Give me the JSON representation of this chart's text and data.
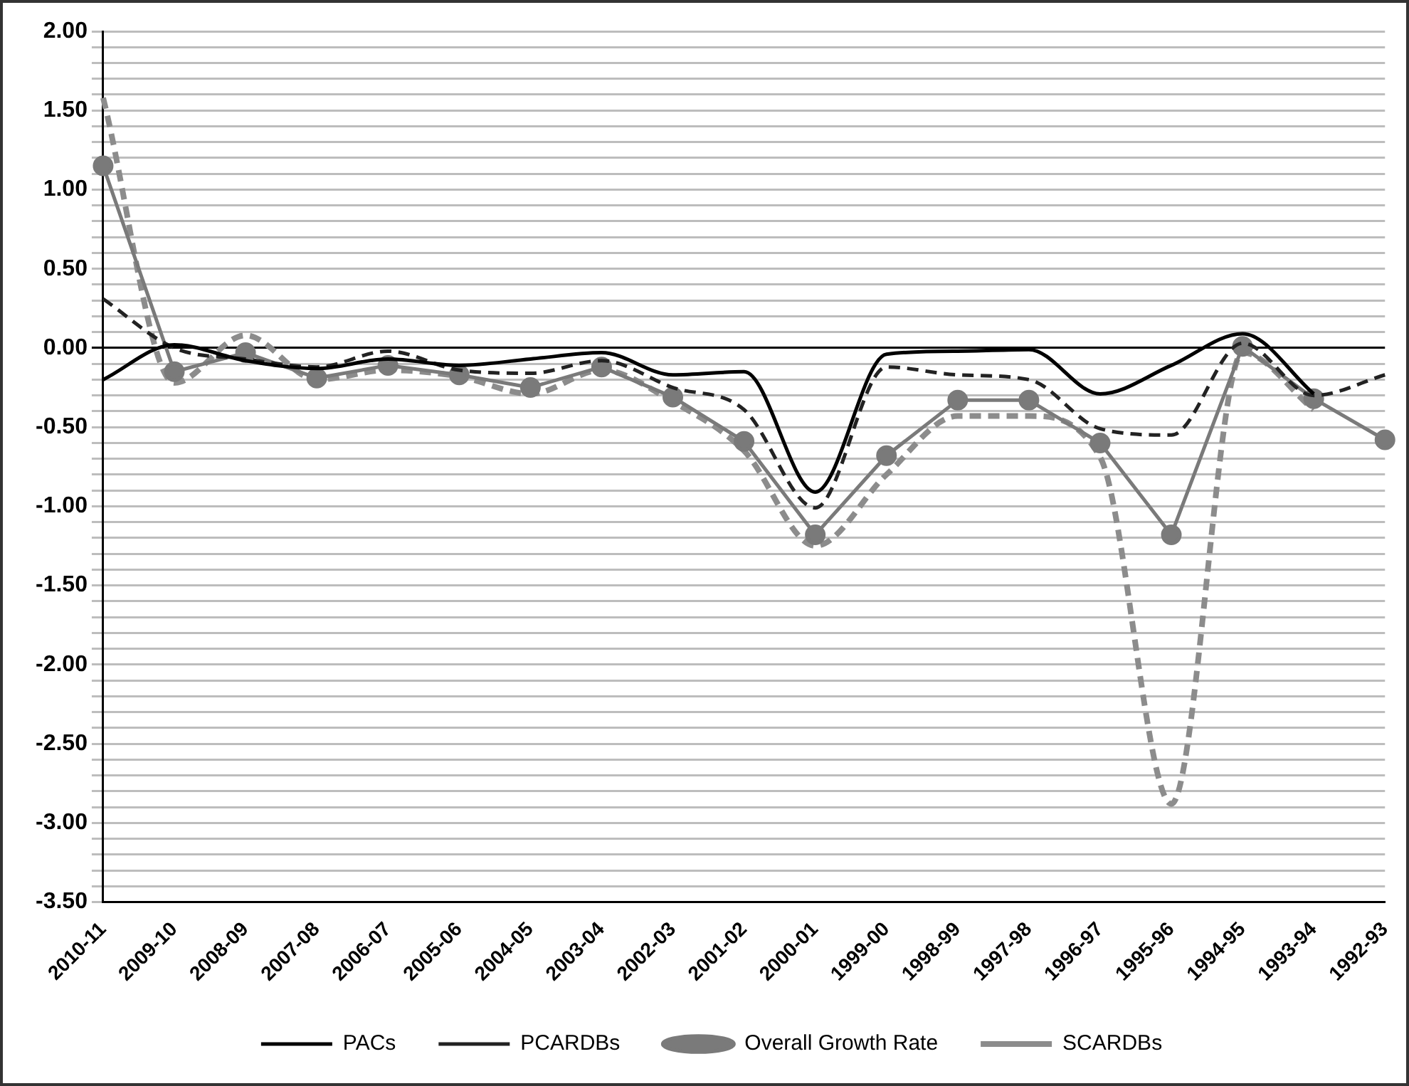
{
  "chart_data": {
    "type": "line",
    "categories": [
      "2010-11",
      "2009-10",
      "2008-09",
      "2007-08",
      "2006-07",
      "2005-06",
      "2004-05",
      "2003-04",
      "2002-03",
      "2001-02",
      "2000-01",
      "1999-00",
      "1998-99",
      "1997-98",
      "1996-97",
      "1995-96",
      "1994-95",
      "1993-94",
      "1992-93"
    ],
    "series": [
      {
        "name": "PACs",
        "color": "#000000",
        "line_style": "solid",
        "marker": "none",
        "values": [
          -0.2,
          0.02,
          -0.08,
          -0.13,
          -0.07,
          -0.11,
          -0.07,
          -0.03,
          -0.17,
          -0.15,
          -0.91,
          -0.04,
          -0.02,
          -0.01,
          -0.29,
          -0.11,
          0.09,
          -0.29,
          null
        ]
      },
      {
        "name": "PCARDBs",
        "color": "#222222",
        "line_style": "dashed",
        "marker": "none",
        "values": [
          0.31,
          0.0,
          -0.07,
          -0.12,
          -0.02,
          -0.14,
          -0.16,
          -0.08,
          -0.25,
          -0.39,
          -1.01,
          -0.12,
          -0.17,
          -0.2,
          -0.51,
          -0.55,
          0.03,
          -0.3,
          -0.17
        ]
      },
      {
        "name": "Overall Growth Rate",
        "color": "#7a7a7a",
        "line_style": "solid",
        "marker": "circle",
        "values": [
          1.15,
          -0.15,
          -0.03,
          -0.19,
          -0.11,
          -0.17,
          -0.25,
          -0.12,
          -0.31,
          -0.59,
          -1.18,
          -0.68,
          -0.33,
          -0.33,
          -0.6,
          -1.18,
          0.01,
          -0.32,
          -0.58
        ]
      },
      {
        "name": "SCARDBs",
        "color": "#8c8c8c",
        "line_style": "dashed",
        "marker": "none",
        "values": [
          1.58,
          -0.22,
          0.08,
          -0.2,
          -0.14,
          -0.18,
          -0.29,
          -0.14,
          -0.34,
          -0.65,
          -1.25,
          -0.8,
          -0.43,
          -0.43,
          -0.69,
          -2.88,
          -0.03,
          -0.39,
          null
        ]
      }
    ],
    "ylim": [
      -3.5,
      2
    ],
    "yticks": [
      {
        "value": -3.5,
        "label": "-3.50"
      },
      {
        "value": -3.4,
        "label": null
      },
      {
        "value": -3.3,
        "label": null
      },
      {
        "value": -3.2,
        "label": null
      },
      {
        "value": -3.1,
        "label": null
      },
      {
        "value": -3.0,
        "label": "-3.00"
      },
      {
        "value": -2.9,
        "label": null
      },
      {
        "value": -2.8,
        "label": null
      },
      {
        "value": -2.7,
        "label": null
      },
      {
        "value": -2.6,
        "label": null
      },
      {
        "value": -2.5,
        "label": "-2.50"
      },
      {
        "value": -2.4,
        "label": null
      },
      {
        "value": -2.3,
        "label": null
      },
      {
        "value": -2.2,
        "label": null
      },
      {
        "value": -2.1,
        "label": null
      },
      {
        "value": -2.0,
        "label": "-2.00"
      },
      {
        "value": -1.9,
        "label": null
      },
      {
        "value": -1.8,
        "label": null
      },
      {
        "value": -1.7,
        "label": null
      },
      {
        "value": -1.6,
        "label": null
      },
      {
        "value": -1.5,
        "label": "-1.50"
      },
      {
        "value": -1.4,
        "label": null
      },
      {
        "value": -1.3,
        "label": null
      },
      {
        "value": -1.2,
        "label": null
      },
      {
        "value": -1.1,
        "label": null
      },
      {
        "value": -1.0,
        "label": "-1.00"
      },
      {
        "value": -0.9,
        "label": null
      },
      {
        "value": -0.8,
        "label": null
      },
      {
        "value": -0.7,
        "label": null
      },
      {
        "value": -0.6,
        "label": null
      },
      {
        "value": -0.5,
        "label": "-0.50"
      },
      {
        "value": -0.4,
        "label": null
      },
      {
        "value": -0.3,
        "label": null
      },
      {
        "value": -0.2,
        "label": null
      },
      {
        "value": -0.1,
        "label": null
      },
      {
        "value": 0,
        "label": "0.00"
      },
      {
        "value": 0.1,
        "label": null
      },
      {
        "value": 0.2,
        "label": null
      },
      {
        "value": 0.3,
        "label": null
      },
      {
        "value": 0.4,
        "label": null
      },
      {
        "value": 0.5,
        "label": "0.50"
      },
      {
        "value": 0.6,
        "label": null
      },
      {
        "value": 0.7,
        "label": null
      },
      {
        "value": 0.8,
        "label": null
      },
      {
        "value": 0.9,
        "label": null
      },
      {
        "value": 1.0,
        "label": "1.00"
      },
      {
        "value": 1.1,
        "label": null
      },
      {
        "value": 1.2,
        "label": null
      },
      {
        "value": 1.3,
        "label": null
      },
      {
        "value": 1.4,
        "label": null
      },
      {
        "value": 1.5,
        "label": "1.50"
      },
      {
        "value": 1.6,
        "label": null
      },
      {
        "value": 1.7,
        "label": null
      },
      {
        "value": 1.8,
        "label": null
      },
      {
        "value": 1.9,
        "label": null
      },
      {
        "value": 2.0,
        "label": "2.00"
      }
    ],
    "grid": "y",
    "legend": "bottom"
  }
}
